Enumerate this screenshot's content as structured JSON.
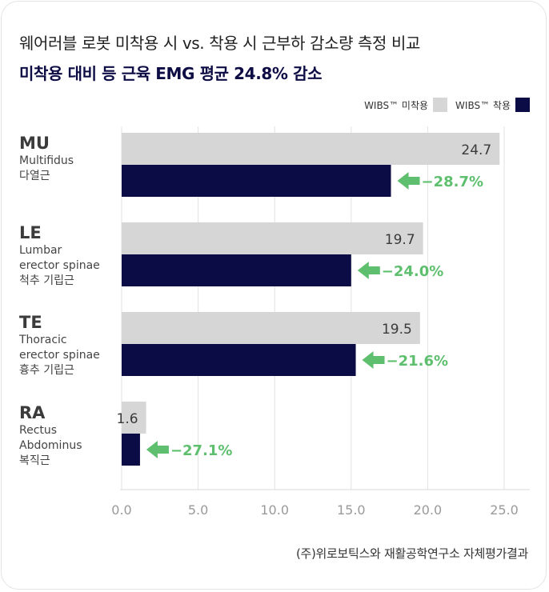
{
  "title": "웨어러블 로봇 미착용 시 vs. 착용 시 근부하 감소량 측정 비교",
  "subtitle": "미착용 대비 등 근육 EMG 평균 24.8% 감소",
  "legend": {
    "before_label": "WIBS™ 미착용",
    "after_label": "WIBS™ 착용"
  },
  "source": "(주)위로보틱스와 재활공학연구소 자체평가결과",
  "colors": {
    "before": "#d6d6d6",
    "after": "#0b0b45",
    "reduction": "#5ebf6e",
    "axis_text": "#9a9a9a"
  },
  "chart_data": {
    "type": "bar",
    "orientation": "horizontal",
    "categories": [
      "MU",
      "LE",
      "TE",
      "RA"
    ],
    "category_descriptions": [
      "Multifidus\n다열근",
      "Lumbar\nerector spinae\n척추 기립근",
      "Thoracic\nerector spinae\n흉추 기립근",
      "Rectus\nAbdominus\n복직근"
    ],
    "series": [
      {
        "name": "WIBS™ 미착용",
        "values": [
          24.7,
          19.7,
          19.5,
          1.6
        ]
      },
      {
        "name": "WIBS™ 착용",
        "values": [
          17.6,
          15.0,
          15.3,
          1.2
        ]
      }
    ],
    "data_labels": [
      "24.7",
      "19.7",
      "19.5",
      "1.6"
    ],
    "reduction_labels": [
      "−28.7%",
      "−24.0%",
      "−21.6%",
      "−27.1%"
    ],
    "xlim": [
      0,
      25
    ],
    "xticks": [
      "0.0",
      "5.0",
      "10.0",
      "15.0",
      "20.0",
      "25.0"
    ],
    "grid": true,
    "legend_position": "top-right"
  }
}
